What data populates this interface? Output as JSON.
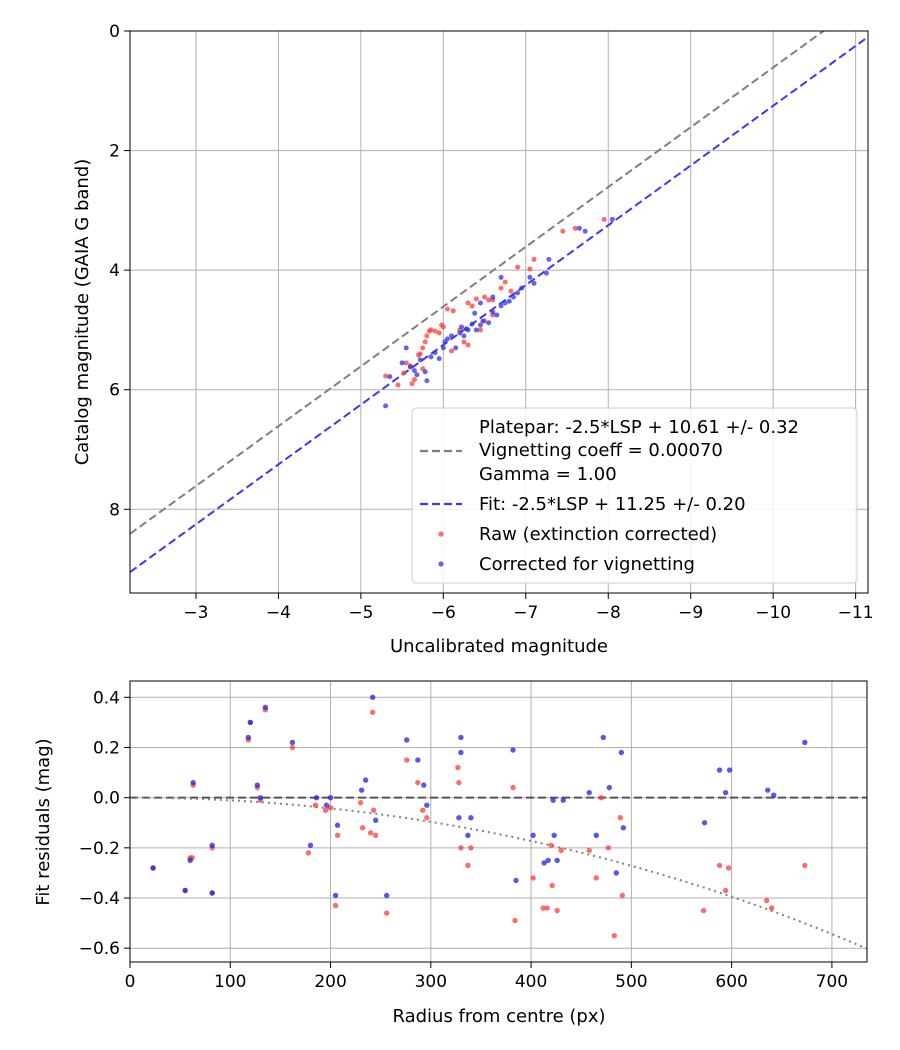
{
  "chart_data": [
    {
      "type": "scatter",
      "xlabel": "Uncalibrated magnitude",
      "ylabel": "Catalog magnitude (GAIA G band)",
      "xlim": [
        -2.2,
        -11.15
      ],
      "ylim": [
        9.4,
        0
      ],
      "x_ticks": [
        -3,
        -4,
        -5,
        -6,
        -7,
        -8,
        -9,
        -10,
        -11
      ],
      "x_tick_labels": [
        "−3",
        "−4",
        "−5",
        "−6",
        "−7",
        "−8",
        "−9",
        "−10",
        "−11"
      ],
      "y_ticks": [
        0,
        2,
        4,
        6,
        8
      ],
      "y_tick_labels": [
        "0",
        "2",
        "4",
        "6",
        "8"
      ],
      "grid": true,
      "legend_position": "lower-right",
      "legend": {
        "platepar_label": "Platepar: -2.5*LSP + 10.61 +/- 0.32",
        "vignetting_label": "Vignetting coeff = 0.00070",
        "gamma_label": "Gamma = 1.00",
        "fit_label": "Fit: -2.5*LSP + 11.25 +/- 0.20",
        "raw_label": "Raw (extinction corrected)",
        "corrected_label": "Corrected for vignetting"
      },
      "lines": [
        {
          "name": "platepar",
          "style": "dashed",
          "color": "#7f7f7f",
          "intercept": 10.61
        },
        {
          "name": "fit",
          "style": "dashed",
          "color": "#3a3af0",
          "intercept": 11.25
        }
      ],
      "series": [
        {
          "name": "Raw (extinction corrected)",
          "color": "#ff3b3b",
          "points": [
            [
              -5.3,
              5.77
            ],
            [
              -5.45,
              5.92
            ],
            [
              -5.52,
              5.72
            ],
            [
              -5.55,
              5.55
            ],
            [
              -5.6,
              5.6
            ],
            [
              -5.65,
              5.83
            ],
            [
              -5.7,
              5.42
            ],
            [
              -5.72,
              5.4
            ],
            [
              -5.75,
              5.3
            ],
            [
              -5.78,
              5.2
            ],
            [
              -5.8,
              5.1
            ],
            [
              -5.83,
              5.02
            ],
            [
              -5.85,
              5.0
            ],
            [
              -5.9,
              5.02
            ],
            [
              -5.95,
              5.05
            ],
            [
              -5.98,
              4.92
            ],
            [
              -6.0,
              4.95
            ],
            [
              -6.05,
              4.65
            ],
            [
              -6.12,
              4.68
            ],
            [
              -6.2,
              5.0
            ],
            [
              -6.3,
              4.55
            ],
            [
              -6.35,
              4.6
            ],
            [
              -6.4,
              4.48
            ],
            [
              -6.5,
              4.45
            ],
            [
              -6.55,
              4.5
            ],
            [
              -6.6,
              4.5
            ],
            [
              -6.7,
              4.3
            ],
            [
              -6.75,
              4.2
            ],
            [
              -6.82,
              4.35
            ],
            [
              -6.9,
              3.95
            ],
            [
              -7.05,
              3.98
            ],
            [
              -7.1,
              3.82
            ],
            [
              -7.45,
              3.35
            ],
            [
              -7.6,
              3.3
            ],
            [
              -7.95,
              3.15
            ],
            [
              -5.62,
              5.9
            ],
            [
              -5.75,
              5.65
            ],
            [
              -6.1,
              5.35
            ],
            [
              -6.25,
              5.2
            ],
            [
              -6.3,
              5.25
            ],
            [
              -6.45,
              5.0
            ],
            [
              -6.5,
              4.85
            ],
            [
              -6.6,
              4.75
            ]
          ]
        },
        {
          "name": "Corrected for vignetting",
          "color": "#3232e6",
          "points": [
            [
              -5.3,
              6.27
            ],
            [
              -5.35,
              5.78
            ],
            [
              -5.5,
              5.55
            ],
            [
              -5.55,
              5.3
            ],
            [
              -5.6,
              5.62
            ],
            [
              -5.65,
              5.68
            ],
            [
              -5.68,
              5.75
            ],
            [
              -5.72,
              5.5
            ],
            [
              -5.78,
              5.7
            ],
            [
              -5.8,
              5.85
            ],
            [
              -5.85,
              5.45
            ],
            [
              -5.9,
              5.38
            ],
            [
              -5.95,
              5.48
            ],
            [
              -6.0,
              5.3
            ],
            [
              -6.02,
              5.2
            ],
            [
              -6.05,
              5.15
            ],
            [
              -6.1,
              5.1
            ],
            [
              -6.15,
              5.3
            ],
            [
              -6.2,
              5.05
            ],
            [
              -6.22,
              4.95
            ],
            [
              -6.25,
              5.1
            ],
            [
              -6.28,
              4.98
            ],
            [
              -6.3,
              5.0
            ],
            [
              -6.35,
              4.9
            ],
            [
              -6.38,
              4.72
            ],
            [
              -6.4,
              5.0
            ],
            [
              -6.45,
              4.92
            ],
            [
              -6.48,
              4.85
            ],
            [
              -6.55,
              4.88
            ],
            [
              -6.6,
              4.7
            ],
            [
              -6.65,
              4.75
            ],
            [
              -6.7,
              4.6
            ],
            [
              -6.75,
              4.55
            ],
            [
              -6.8,
              4.52
            ],
            [
              -6.85,
              4.45
            ],
            [
              -6.9,
              4.38
            ],
            [
              -6.95,
              4.3
            ],
            [
              -7.05,
              4.12
            ],
            [
              -7.1,
              4.22
            ],
            [
              -7.25,
              4.05
            ],
            [
              -7.28,
              3.82
            ],
            [
              -7.65,
              3.3
            ],
            [
              -7.72,
              3.35
            ],
            [
              -8.05,
              3.15
            ],
            [
              -6.6,
              4.45
            ],
            [
              -6.7,
              4.12
            ],
            [
              -6.45,
              4.55
            ]
          ]
        }
      ]
    },
    {
      "type": "scatter",
      "xlabel": "Radius from centre (px)",
      "ylabel": "Fit residuals (mag)",
      "xlim": [
        0,
        735
      ],
      "ylim": [
        -0.655,
        0.465
      ],
      "x_ticks": [
        0,
        100,
        200,
        300,
        400,
        500,
        600,
        700
      ],
      "x_tick_labels": [
        "0",
        "100",
        "200",
        "300",
        "400",
        "500",
        "600",
        "700"
      ],
      "y_ticks": [
        -0.6,
        -0.4,
        -0.2,
        0.0,
        0.2,
        0.4
      ],
      "y_tick_labels": [
        "−0.6",
        "−0.4",
        "−0.2",
        "0.0",
        "0.2",
        "0.4"
      ],
      "grid": true,
      "lines": [
        {
          "name": "zero",
          "style": "dashed",
          "color": "#555555",
          "y": 0
        },
        {
          "name": "vignetting-model",
          "style": "dotted",
          "color": "#808080",
          "vignetting_coeff": 0.0007
        }
      ],
      "series": [
        {
          "name": "Raw (extinction corrected)",
          "color": "#ff3b3b",
          "points": [
            [
              23,
              -0.28
            ],
            [
              55,
              -0.37
            ],
            [
              60,
              -0.24
            ],
            [
              62,
              -0.24
            ],
            [
              63,
              0.05
            ],
            [
              82,
              -0.38
            ],
            [
              82,
              -0.2
            ],
            [
              118,
              0.23
            ],
            [
              120,
              0.3
            ],
            [
              127,
              0.04
            ],
            [
              130,
              -0.01
            ],
            [
              135,
              0.35
            ],
            [
              162,
              0.2
            ],
            [
              178,
              -0.22
            ],
            [
              185,
              -0.03
            ],
            [
              195,
              -0.05
            ],
            [
              200,
              -0.04
            ],
            [
              205,
              -0.43
            ],
            [
              207,
              -0.15
            ],
            [
              230,
              -0.02
            ],
            [
              232,
              -0.12
            ],
            [
              240,
              -0.14
            ],
            [
              242,
              0.34
            ],
            [
              243,
              -0.05
            ],
            [
              245,
              -0.15
            ],
            [
              256,
              -0.46
            ],
            [
              276,
              0.15
            ],
            [
              287,
              0.06
            ],
            [
              292,
              -0.05
            ],
            [
              296,
              -0.08
            ],
            [
              327,
              0.12
            ],
            [
              328,
              0.06
            ],
            [
              330,
              -0.2
            ],
            [
              337,
              -0.27
            ],
            [
              340,
              -0.2
            ],
            [
              382,
              0.04
            ],
            [
              384,
              -0.49
            ],
            [
              402,
              -0.32
            ],
            [
              412,
              -0.44
            ],
            [
              416,
              -0.44
            ],
            [
              420,
              -0.19
            ],
            [
              421,
              -0.35
            ],
            [
              426,
              -0.45
            ],
            [
              430,
              -0.21
            ],
            [
              458,
              -0.21
            ],
            [
              465,
              -0.32
            ],
            [
              470,
              0.0
            ],
            [
              477,
              -0.2
            ],
            [
              483,
              -0.55
            ],
            [
              489,
              -0.08
            ],
            [
              491,
              -0.39
            ],
            [
              572,
              -0.45
            ],
            [
              588,
              -0.27
            ],
            [
              594,
              -0.37
            ],
            [
              597,
              -0.28
            ],
            [
              635,
              -0.41
            ],
            [
              640,
              -0.44
            ],
            [
              673,
              -0.27
            ]
          ]
        },
        {
          "name": "Corrected for vignetting",
          "color": "#2020e0",
          "points": [
            [
              23,
              -0.28
            ],
            [
              55,
              -0.37
            ],
            [
              60,
              -0.25
            ],
            [
              63,
              0.06
            ],
            [
              82,
              -0.38
            ],
            [
              82,
              -0.19
            ],
            [
              118,
              0.24
            ],
            [
              120,
              0.3
            ],
            [
              127,
              0.05
            ],
            [
              130,
              0.0
            ],
            [
              135,
              0.36
            ],
            [
              162,
              0.22
            ],
            [
              180,
              -0.19
            ],
            [
              186,
              0.0
            ],
            [
              196,
              -0.03
            ],
            [
              200,
              0.0
            ],
            [
              205,
              -0.39
            ],
            [
              207,
              -0.11
            ],
            [
              231,
              0.03
            ],
            [
              235,
              0.07
            ],
            [
              242,
              0.4
            ],
            [
              245,
              -0.09
            ],
            [
              256,
              -0.39
            ],
            [
              276,
              0.23
            ],
            [
              287,
              0.15
            ],
            [
              293,
              0.05
            ],
            [
              296,
              -0.03
            ],
            [
              328,
              -0.08
            ],
            [
              330,
              0.24
            ],
            [
              330,
              0.18
            ],
            [
              337,
              -0.15
            ],
            [
              340,
              -0.08
            ],
            [
              382,
              0.19
            ],
            [
              385,
              -0.33
            ],
            [
              402,
              -0.15
            ],
            [
              413,
              -0.26
            ],
            [
              417,
              -0.25
            ],
            [
              422,
              -0.01
            ],
            [
              423,
              -0.15
            ],
            [
              426,
              -0.25
            ],
            [
              432,
              -0.01
            ],
            [
              458,
              0.02
            ],
            [
              465,
              -0.15
            ],
            [
              472,
              0.24
            ],
            [
              478,
              0.04
            ],
            [
              485,
              -0.3
            ],
            [
              490,
              0.18
            ],
            [
              492,
              -0.12
            ],
            [
              573,
              -0.1
            ],
            [
              588,
              0.11
            ],
            [
              594,
              0.02
            ],
            [
              598,
              0.11
            ],
            [
              636,
              0.03
            ],
            [
              642,
              0.01
            ],
            [
              673,
              0.22
            ]
          ]
        }
      ]
    }
  ]
}
